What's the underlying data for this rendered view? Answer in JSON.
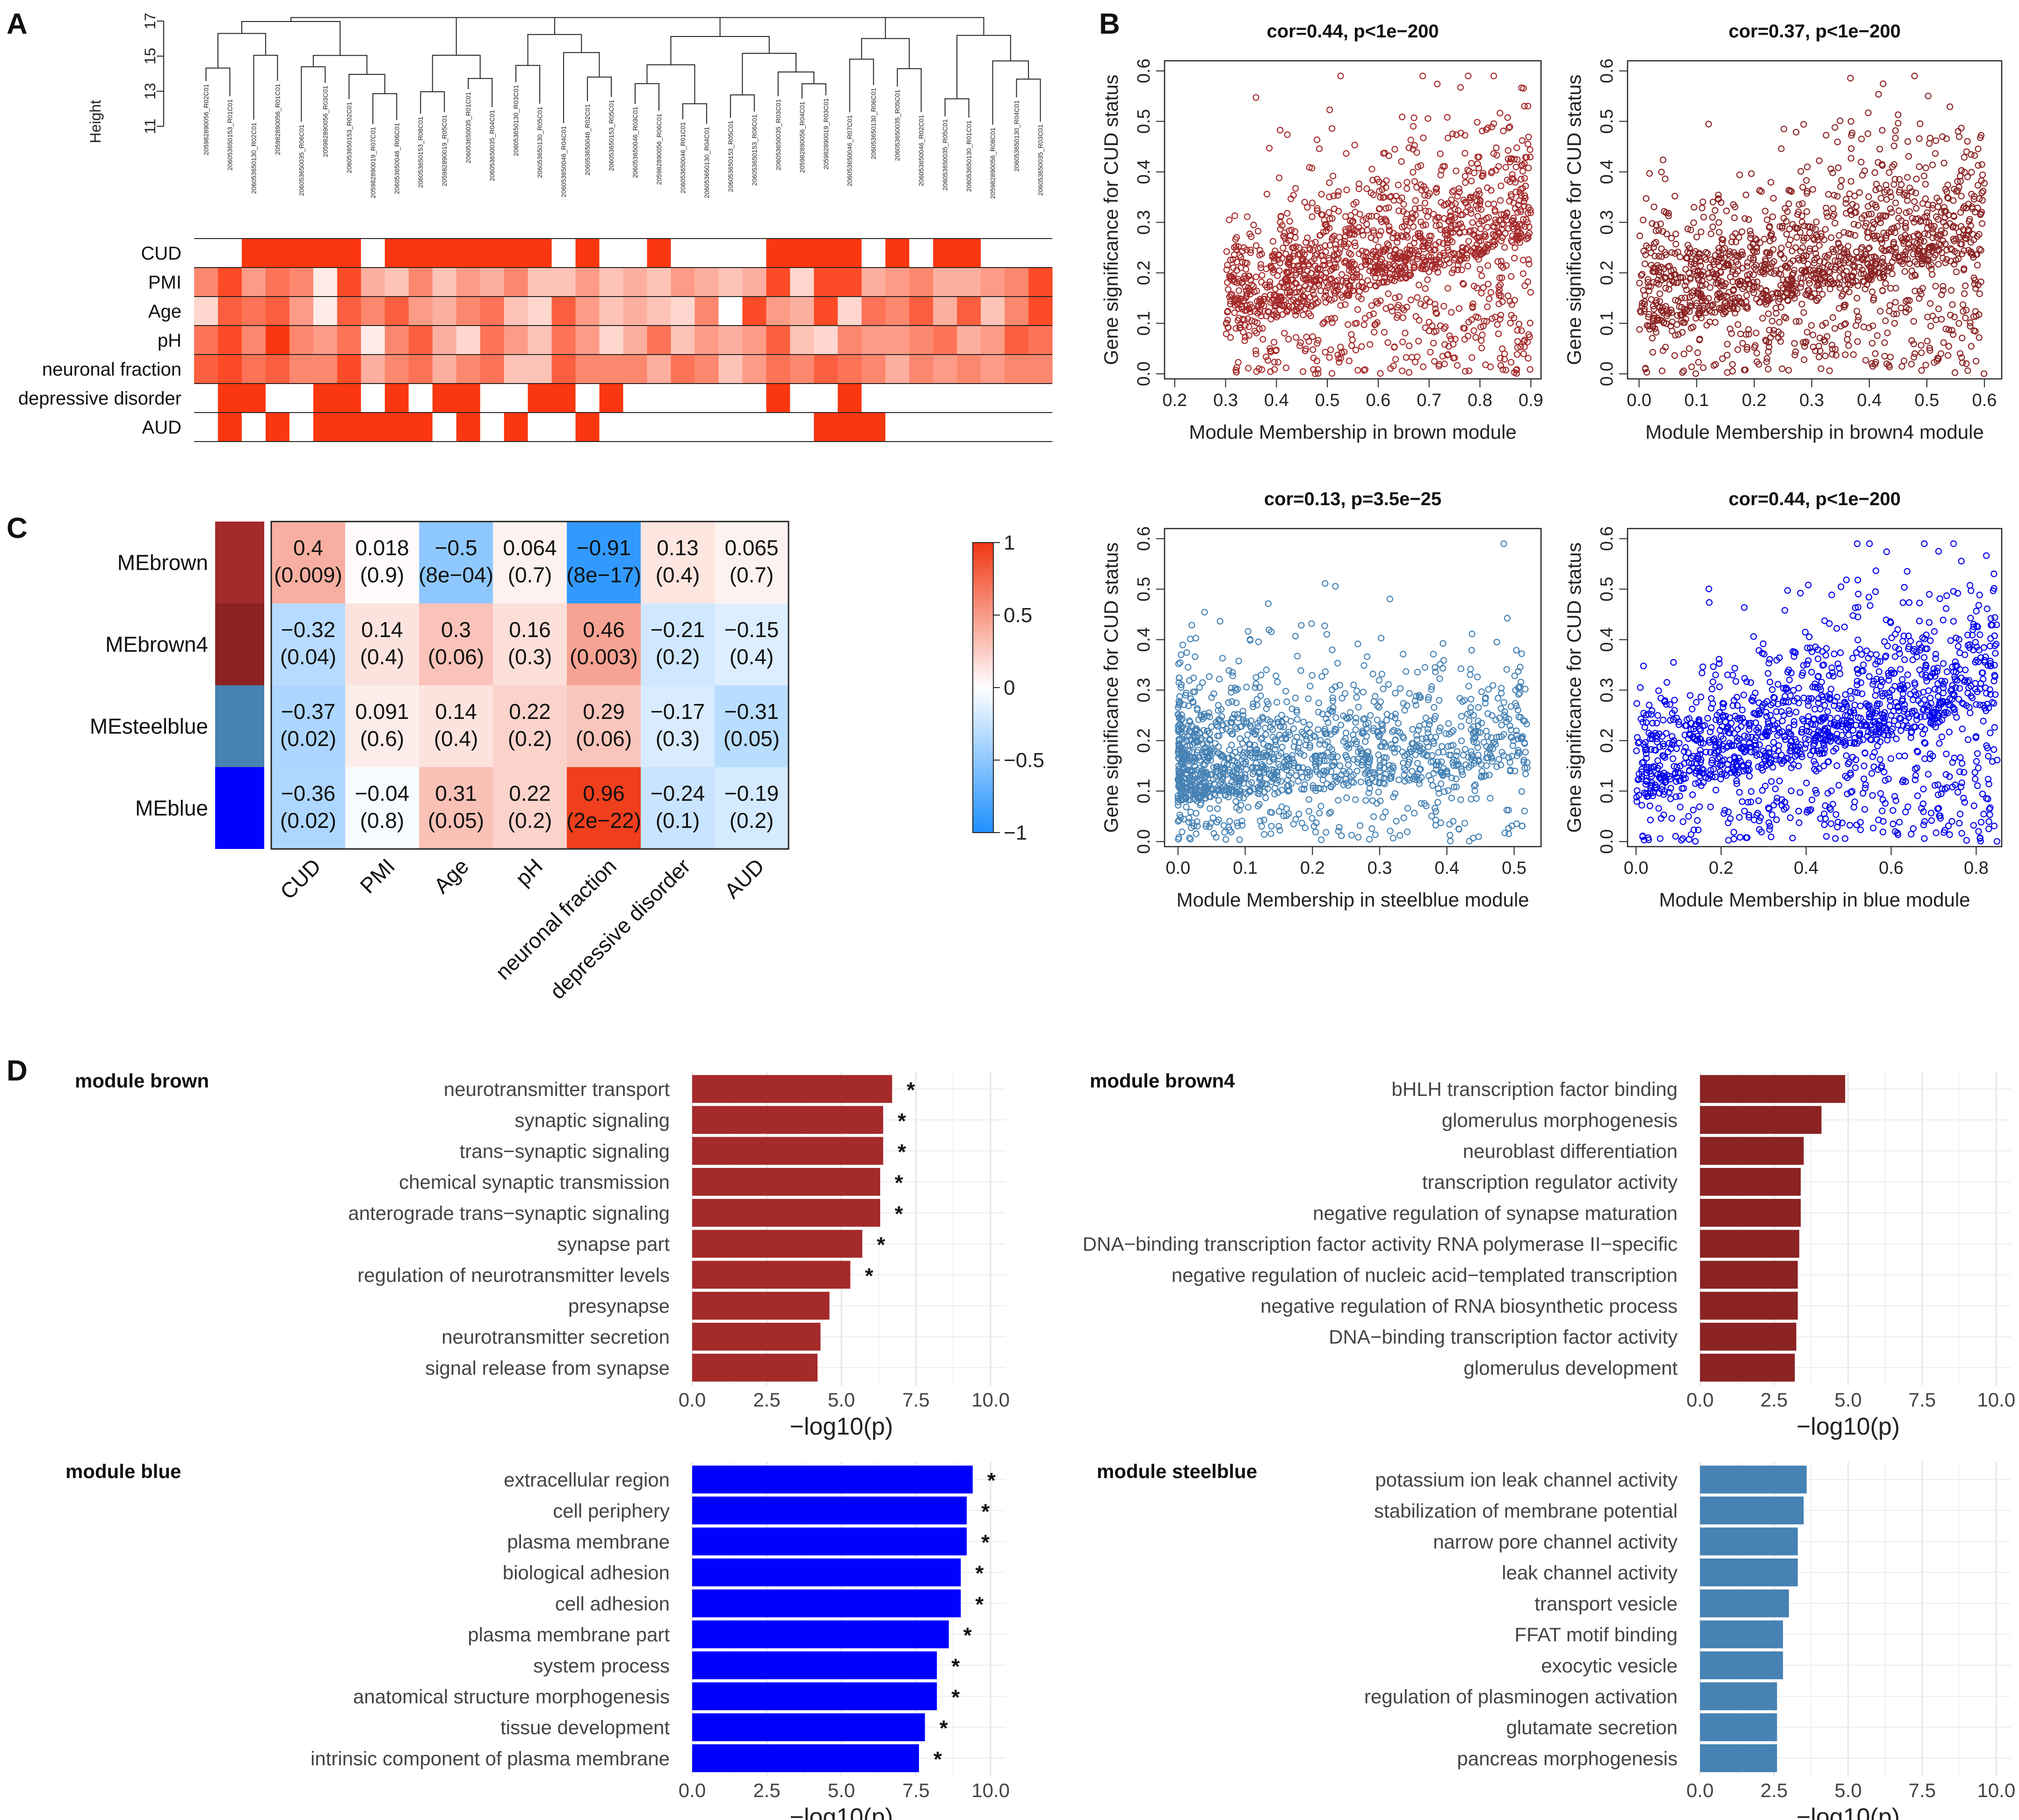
{
  "panels": {
    "A": "A",
    "B": "B",
    "C": "C",
    "D": "D"
  },
  "chart_data": [
    {
      "id": "A",
      "type": "dendrogram_heatmap",
      "ylabel": "Height",
      "yticks": [
        11,
        13,
        15,
        17
      ],
      "samples": [
        "205982890056_R02C01",
        "206053650153_R01C01",
        "206053650130_R02C01",
        "205982890056_R01C01",
        "206053650035_R06C01",
        "205982890056_R03C01",
        "206053650153_R02C01",
        "205982890019_R07C01",
        "206053650046_R06C01",
        "206053650153_R08C01",
        "205982890019_R05C01",
        "206053650035_R01C01",
        "206053650035_R04C01",
        "206053650130_R03C01",
        "206053650130_R05C01",
        "206053650046_R04C01",
        "206053650046_R02C01",
        "206053650153_R05C01",
        "206053650046_R03C01",
        "205982890056_R06C01",
        "206053650046_R01C01",
        "206053650130_R04C01",
        "206053650153_R05C01",
        "206053650153_R06C01",
        "206053650035_R03C01",
        "205982890056_R04C01",
        "205982890019_R03C01",
        "206053650046_R07C01",
        "206053650130_R06C01",
        "206053650035_R05C01",
        "206053650046_R02C01",
        "206053650035_R05C01",
        "206053650130_R01C01",
        "205982890056_R08C01",
        "206053650130_R04C01",
        "206053650035_R03C01"
      ],
      "traits": [
        "CUD",
        "PMI",
        "Age",
        "pH",
        "neuronal fraction",
        "depressive disorder",
        "AUD"
      ],
      "values": {
        "CUD": [
          0,
          0,
          1,
          1,
          1,
          1,
          1,
          0,
          1,
          1,
          1,
          1,
          1,
          1,
          1,
          0,
          1,
          0,
          0,
          1,
          0,
          0,
          0,
          0,
          1,
          1,
          1,
          1,
          0,
          1,
          0,
          1,
          1,
          0,
          0,
          0
        ],
        "PMI": [
          0.6,
          0.9,
          0.5,
          0.7,
          0.6,
          0.1,
          0.9,
          0.4,
          0.3,
          0.6,
          0.3,
          0.5,
          0.4,
          0.6,
          0.3,
          0.3,
          0.5,
          0.3,
          0.4,
          0.3,
          0.5,
          0.4,
          0.3,
          0.4,
          0.9,
          0.2,
          0.9,
          0.9,
          0.4,
          0.5,
          0.6,
          0.4,
          0.4,
          0.5,
          0.6,
          0.9
        ],
        "Age": [
          0.2,
          0.8,
          0.7,
          0.8,
          0.5,
          0.1,
          0.8,
          0.6,
          0.8,
          0.5,
          0.4,
          0.6,
          0.7,
          0.3,
          0.2,
          0.8,
          0.5,
          0.3,
          0.4,
          0.3,
          0.2,
          0.6,
          0.0,
          0.9,
          0.5,
          0.4,
          0.9,
          0.2,
          0.7,
          0.6,
          0.8,
          0.4,
          0.8,
          0.3,
          0.6,
          0.9
        ],
        "pH": [
          0.7,
          0.9,
          0.6,
          1.0,
          0.6,
          0.5,
          0.7,
          0.1,
          0.6,
          0.8,
          0.4,
          0.2,
          0.7,
          0.5,
          0.3,
          0.7,
          0.5,
          0.2,
          0.4,
          0.7,
          0.3,
          0.5,
          0.4,
          0.5,
          0.8,
          0.3,
          0.2,
          0.6,
          0.5,
          0.5,
          0.6,
          0.7,
          0.4,
          0.5,
          0.8,
          0.7
        ],
        "neuronal fraction": [
          0.8,
          0.9,
          0.7,
          0.8,
          0.6,
          0.6,
          0.9,
          0.4,
          0.6,
          0.7,
          0.4,
          0.6,
          0.7,
          0.3,
          0.3,
          0.8,
          0.6,
          0.6,
          0.6,
          0.4,
          0.7,
          0.6,
          0.3,
          0.5,
          0.7,
          0.6,
          0.8,
          0.7,
          0.6,
          0.4,
          0.6,
          0.5,
          0.6,
          0.5,
          0.6,
          0.6
        ],
        "depressive disorder": [
          0,
          1,
          1,
          0,
          0,
          1,
          1,
          0,
          1,
          0,
          1,
          1,
          0,
          0,
          1,
          1,
          0,
          1,
          0,
          0,
          0,
          0,
          0,
          0,
          1,
          0,
          0,
          1,
          0,
          0,
          0,
          0,
          0,
          0,
          0,
          0
        ],
        "AUD": [
          0,
          1,
          0,
          1,
          0,
          1,
          1,
          1,
          1,
          1,
          0,
          1,
          0,
          1,
          0,
          0,
          1,
          0,
          0,
          0,
          0,
          0,
          0,
          0,
          0,
          0,
          1,
          1,
          1,
          0,
          0,
          0,
          0,
          0,
          0,
          0
        ]
      }
    },
    {
      "id": "B1",
      "type": "scatter",
      "title": "cor=0.44, p<1e−200",
      "xlabel": "Module Membership in brown module",
      "ylabel": "Gene significance for CUD status",
      "xlim": [
        0.18,
        0.92
      ],
      "ylim": [
        -0.01,
        0.62
      ],
      "xticks": [
        0.2,
        0.3,
        0.4,
        0.5,
        0.6,
        0.7,
        0.8,
        0.9
      ],
      "yticks": [
        0.0,
        0.1,
        0.2,
        0.3,
        0.4,
        0.5,
        0.6
      ],
      "color": "#a52a2a",
      "xrange": [
        0.3,
        0.9
      ],
      "cor": 0.44
    },
    {
      "id": "B2",
      "type": "scatter",
      "title": "cor=0.37, p<1e−200",
      "xlabel": "Module Membership in brown4 module",
      "ylabel": "Gene significance for CUD status",
      "xlim": [
        -0.02,
        0.63
      ],
      "ylim": [
        -0.01,
        0.62
      ],
      "xticks": [
        0.0,
        0.1,
        0.2,
        0.3,
        0.4,
        0.5,
        0.6
      ],
      "yticks": [
        0.0,
        0.1,
        0.2,
        0.3,
        0.4,
        0.5,
        0.6
      ],
      "color": "#8b2323",
      "xrange": [
        0.0,
        0.6
      ],
      "cor": 0.37
    },
    {
      "id": "B3",
      "type": "scatter",
      "title": "cor=0.13, p=3.5e−25",
      "xlabel": "Module Membership in steelblue module",
      "ylabel": "Gene significance for CUD status",
      "xlim": [
        -0.02,
        0.54
      ],
      "ylim": [
        -0.01,
        0.62
      ],
      "xticks": [
        0.0,
        0.1,
        0.2,
        0.3,
        0.4,
        0.5
      ],
      "yticks": [
        0.0,
        0.1,
        0.2,
        0.3,
        0.4,
        0.5,
        0.6
      ],
      "color": "#4682b4",
      "xrange": [
        0.0,
        0.52
      ],
      "cor": 0.13
    },
    {
      "id": "B4",
      "type": "scatter",
      "title": "cor=0.44, p<1e−200",
      "xlabel": "Module Membership in blue module",
      "ylabel": "Gene significance for CUD status",
      "xlim": [
        -0.02,
        0.86
      ],
      "ylim": [
        -0.01,
        0.62
      ],
      "xticks": [
        0.0,
        0.2,
        0.4,
        0.6,
        0.8
      ],
      "yticks": [
        0.0,
        0.1,
        0.2,
        0.3,
        0.4,
        0.5,
        0.6
      ],
      "color": "#0000ee",
      "xrange": [
        0.0,
        0.85
      ],
      "cor": 0.44
    },
    {
      "id": "C",
      "type": "heatmap",
      "rows": [
        "MEbrown",
        "MEbrown4",
        "MEsteelblue",
        "MEblue"
      ],
      "row_colors": [
        "#a52a2a",
        "#8b2323",
        "#4682b4",
        "#0000ff"
      ],
      "cols": [
        "CUD",
        "PMI",
        "Age",
        "pH",
        "neuronal fraction",
        "depressive disorder",
        "AUD"
      ],
      "values": [
        [
          0.4,
          0.018,
          -0.5,
          0.064,
          -0.91,
          0.13,
          0.065
        ],
        [
          -0.32,
          0.14,
          0.3,
          0.16,
          0.46,
          -0.21,
          -0.15
        ],
        [
          -0.37,
          0.091,
          0.14,
          0.22,
          0.29,
          -0.17,
          -0.31
        ],
        [
          -0.36,
          -0.04,
          0.31,
          0.22,
          0.96,
          -0.24,
          -0.19
        ]
      ],
      "labels": [
        [
          "0.4",
          "0.018",
          "−0.5",
          "0.064",
          "−0.91",
          "0.13",
          "0.065"
        ],
        [
          "−0.32",
          "0.14",
          "0.3",
          "0.16",
          "0.46",
          "−0.21",
          "−0.15"
        ],
        [
          "−0.37",
          "0.091",
          "0.14",
          "0.22",
          "0.29",
          "−0.17",
          "−0.31"
        ],
        [
          "−0.36",
          "−0.04",
          "0.31",
          "0.22",
          "0.96",
          "−0.24",
          "−0.19"
        ]
      ],
      "pvalues": [
        [
          "(0.009)",
          "(0.9)",
          "(8e−04)",
          "(0.7)",
          "(8e−17)",
          "(0.4)",
          "(0.7)"
        ],
        [
          "(0.04)",
          "(0.4)",
          "(0.06)",
          "(0.3)",
          "(0.003)",
          "(0.2)",
          "(0.4)"
        ],
        [
          "(0.02)",
          "(0.6)",
          "(0.4)",
          "(0.2)",
          "(0.06)",
          "(0.3)",
          "(0.05)"
        ],
        [
          "(0.02)",
          "(0.8)",
          "(0.05)",
          "(0.2)",
          "(2e−22)",
          "(0.1)",
          "(0.2)"
        ]
      ],
      "legend_ticks": [
        1,
        0.5,
        0,
        -0.5,
        -1
      ],
      "legend_labels": [
        "1",
        "0.5",
        "0",
        "−0.5",
        "−1"
      ]
    },
    {
      "id": "D1",
      "type": "bar",
      "title": "module brown",
      "color": "#a52a2a",
      "xlabel": "−log10(p)",
      "xlim": [
        0,
        10.5
      ],
      "xticks": [
        0.0,
        2.5,
        5.0,
        7.5,
        10.0
      ],
      "categories": [
        "neurotransmitter transport",
        "synaptic signaling",
        "trans−synaptic signaling",
        "chemical synaptic transmission",
        "anterograde trans−synaptic signaling",
        "synapse part",
        "regulation of neurotransmitter levels",
        "presynapse",
        "neurotransmitter secretion",
        "signal release from synapse"
      ],
      "values": [
        6.7,
        6.4,
        6.4,
        6.3,
        6.3,
        5.7,
        5.3,
        4.6,
        4.3,
        4.2
      ],
      "significant": [
        true,
        true,
        true,
        true,
        true,
        true,
        true,
        false,
        false,
        false
      ]
    },
    {
      "id": "D2",
      "type": "bar",
      "title": "module brown4",
      "color": "#8b2323",
      "xlabel": "−log10(p)",
      "xlim": [
        0,
        10.5
      ],
      "xticks": [
        0.0,
        2.5,
        5.0,
        7.5,
        10.0
      ],
      "categories": [
        "bHLH transcription factor binding",
        "glomerulus morphogenesis",
        "neuroblast differentiation",
        "transcription regulator activity",
        "negative regulation of synapse maturation",
        "DNA−binding transcription factor activity RNA polymerase II−specific",
        "negative regulation of nucleic acid−templated transcription",
        "negative regulation of RNA biosynthetic process",
        "DNA−binding transcription factor activity",
        "glomerulus development"
      ],
      "values": [
        4.9,
        4.1,
        3.5,
        3.4,
        3.4,
        3.35,
        3.3,
        3.3,
        3.25,
        3.2
      ],
      "significant": [
        false,
        false,
        false,
        false,
        false,
        false,
        false,
        false,
        false,
        false
      ]
    },
    {
      "id": "D3",
      "type": "bar",
      "title": "module blue",
      "color": "#0000ff",
      "xlabel": "−log10(p)",
      "xlim": [
        0,
        10.5
      ],
      "xticks": [
        0.0,
        2.5,
        5.0,
        7.5,
        10.0
      ],
      "categories": [
        "extracellular region",
        "cell periphery",
        "plasma membrane",
        "biological adhesion",
        "cell adhesion",
        "plasma membrane part",
        "system process",
        "anatomical structure morphogenesis",
        "tissue development",
        "intrinsic component of plasma membrane"
      ],
      "values": [
        9.4,
        9.2,
        9.2,
        9.0,
        9.0,
        8.6,
        8.2,
        8.2,
        7.8,
        7.6
      ],
      "significant": [
        true,
        true,
        true,
        true,
        true,
        true,
        true,
        true,
        true,
        true
      ]
    },
    {
      "id": "D4",
      "type": "bar",
      "title": "module steelblue",
      "color": "#4682b4",
      "xlabel": "−log10(p)",
      "xlim": [
        0,
        10.5
      ],
      "xticks": [
        0.0,
        2.5,
        5.0,
        7.5,
        10.0
      ],
      "categories": [
        "potassium ion leak channel activity",
        "stabilization of membrane potential",
        "narrow pore channel activity",
        "leak channel activity",
        "transport vesicle",
        "FFAT motif binding",
        "exocytic vesicle",
        "regulation of plasminogen activation",
        "glutamate secretion",
        "pancreas morphogenesis"
      ],
      "values": [
        3.6,
        3.5,
        3.3,
        3.3,
        3.0,
        2.8,
        2.8,
        2.6,
        2.6,
        2.6
      ],
      "significant": [
        false,
        false,
        false,
        false,
        false,
        false,
        false,
        false,
        false,
        false
      ]
    }
  ]
}
